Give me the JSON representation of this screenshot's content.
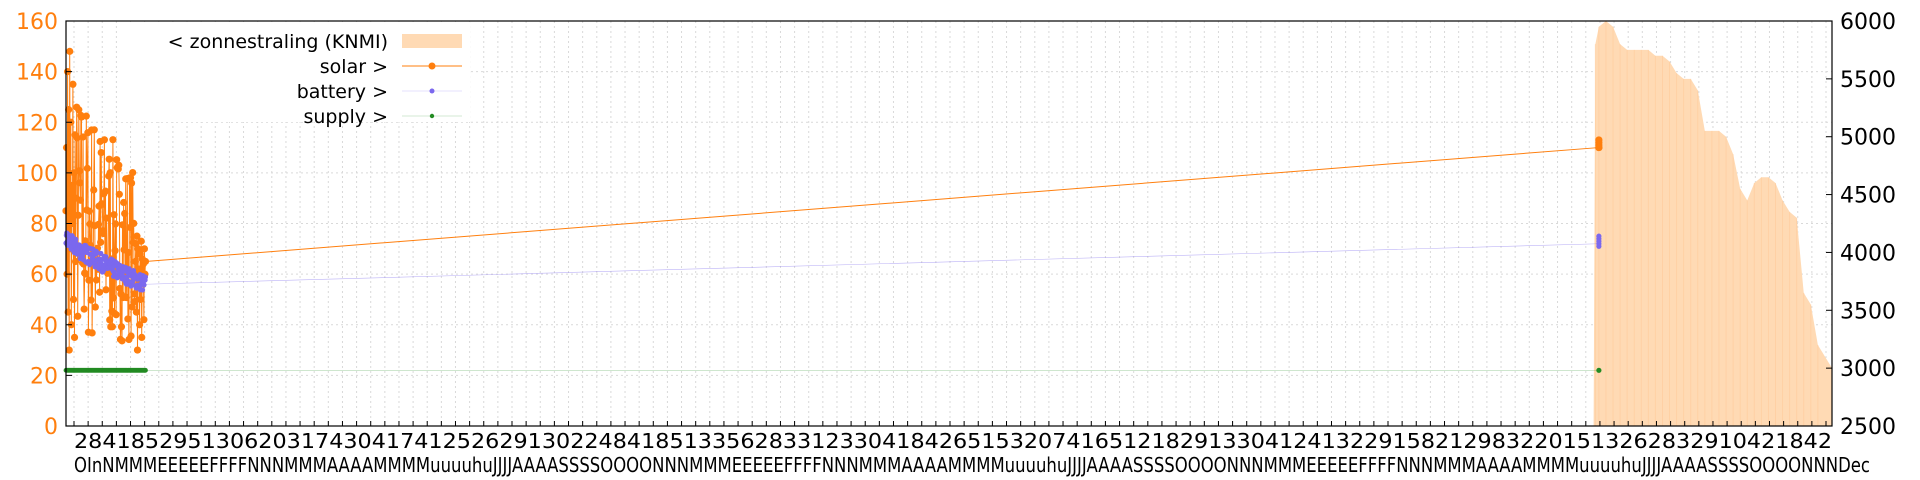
{
  "chart_data": {
    "type": "line",
    "title": "",
    "xlabel": "",
    "ylabel": "",
    "ylim": [
      0,
      160
    ],
    "y2lim": [
      2500,
      6000
    ],
    "grid": true,
    "legend_placement": "top-left",
    "y_ticks": [
      "0",
      "20",
      "40",
      "60",
      "80",
      "100",
      "120",
      "140",
      "160"
    ],
    "y2_ticks": [
      "2500",
      "3000",
      "3500",
      "4000",
      "4500",
      "5000",
      "5500",
      "6000"
    ],
    "x_tick_labels_row1": "2841852951306203174304174125262913022484185133562833123304184265153207416512182913304124132291582129832201513262832910421842",
    "x_tick_labels_row2": "OInNMMMEEEEEFFFFNNNMMMAAAAMMMMuuuuhuJJJJAAAASSSSOOOONNNMMMEEEEEFFFFNNNMMMAAAAMMMMuuuuhuJJJJAAAASSSSOOOONNNMMMEEEEEFFFFNNNMMMAAAAMMMMuuuuhuJJJJAAAASSSSOOOONNNDec",
    "x_tick_count": 124,
    "colors": {
      "radiation": "#ffdab4",
      "solar": "#ff7f0e",
      "battery": "#7b68ee",
      "supply": "#228b22",
      "axis_left": "#ff7f0e",
      "grid": "#d9d9d9"
    },
    "series": [
      {
        "name": "< zonnestraling (KNMI)",
        "axis": "right",
        "type": "area",
        "x": [
          0.0,
          0.865,
          0.866,
          0.868,
          0.872,
          0.876,
          0.88,
          0.884,
          0.888,
          0.892,
          0.896,
          0.9,
          0.904,
          0.908,
          0.912,
          0.916,
          0.92,
          0.924,
          0.928,
          0.932,
          0.936,
          0.94,
          0.944,
          0.948,
          0.952,
          0.956,
          0.96,
          0.964,
          0.968,
          0.972,
          0.976,
          0.98,
          0.984,
          0.988,
          0.992,
          1.0
        ],
        "values": [
          2500,
          2500,
          5800,
          5950,
          6000,
          5950,
          5800,
          5750,
          5750,
          5750,
          5750,
          5700,
          5700,
          5650,
          5550,
          5500,
          5500,
          5400,
          5050,
          5050,
          5050,
          5000,
          4850,
          4550,
          4450,
          4600,
          4650,
          4650,
          4600,
          4450,
          4350,
          4300,
          3650,
          3550,
          3200,
          3000
        ]
      },
      {
        "name": "solar >",
        "axis": "left",
        "type": "line-points",
        "summary": {
          "early_range": [
            25,
            150
          ],
          "early_trend_start": 85,
          "early_trend_end": 65,
          "late_value": 110,
          "late_x_fraction": 0.868
        },
        "values_start": [
          85,
          110,
          60,
          140,
          45,
          125,
          30,
          148,
          70,
          120,
          40,
          95,
          80,
          135,
          50,
          100,
          35,
          115,
          65,
          90
        ],
        "values_end": [
          65,
          72,
          45,
          75,
          30,
          70,
          55,
          62,
          40,
          68,
          50,
          73,
          35,
          66,
          58,
          64,
          42,
          70,
          60,
          65
        ],
        "late_points": [
          110,
          111,
          112,
          113,
          110
        ]
      },
      {
        "name": "battery >",
        "axis": "left",
        "type": "points",
        "summary": {
          "start": 74,
          "end": 56,
          "late_value": 72,
          "late_x_fraction": 0.868
        },
        "late_points": [
          71,
          73,
          74,
          75,
          72
        ]
      },
      {
        "name": "supply >",
        "axis": "left",
        "type": "points",
        "summary": {
          "value": 22,
          "late_value": 22,
          "late_x_fraction": 0.868
        }
      }
    ]
  }
}
